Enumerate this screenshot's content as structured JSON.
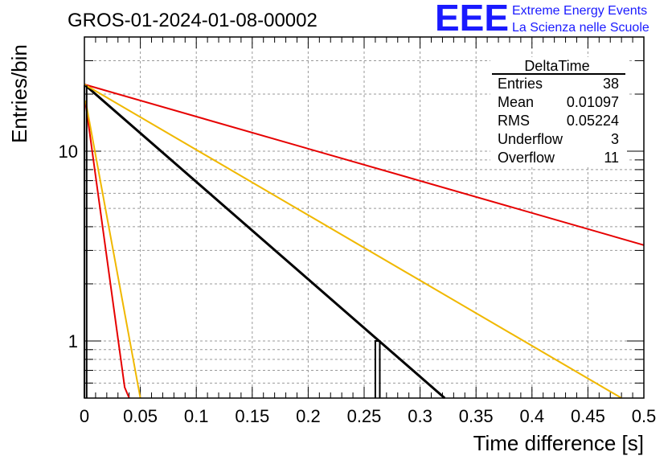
{
  "header": {
    "title": "GROS-01-2024-01-08-00002",
    "logo_text": "EEE",
    "logo_line1": "Extreme Energy Events",
    "logo_line2": "La Scienza nelle Scuole",
    "logo_color": "#1a1aff"
  },
  "stats": {
    "title": "DeltaTime",
    "rows": [
      {
        "label": "Entries",
        "value": "38"
      },
      {
        "label": "Mean",
        "value": "0.01097"
      },
      {
        "label": "RMS",
        "value": "0.05224"
      },
      {
        "label": "Underflow",
        "value": "3"
      },
      {
        "label": "Overflow",
        "value": "11"
      }
    ]
  },
  "chart_data": {
    "type": "line",
    "title": "GROS-01-2024-01-08-00002",
    "xlabel": "Time difference [s]",
    "ylabel": "Entries/bin",
    "xlim": [
      0,
      0.5
    ],
    "ylim": [
      0.5,
      40
    ],
    "yscale": "log",
    "grid": true,
    "x_ticks": [
      "0",
      "0.05",
      "0.1",
      "0.15",
      "0.2",
      "0.25",
      "0.3",
      "0.35",
      "0.4",
      "0.45",
      "0.5"
    ],
    "y_ticks": [
      "1",
      "10"
    ],
    "histogram": {
      "color": "#000000",
      "bins": [
        {
          "x0": 0.0,
          "x1": 0.002,
          "y": 22
        },
        {
          "x0": 0.26,
          "x1": 0.264,
          "y": 1
        }
      ]
    },
    "series": [
      {
        "color": "#000000",
        "x": [
          0.0,
          0.322
        ],
        "y": [
          22.5,
          0.5
        ]
      },
      {
        "color": "#e60000",
        "x": [
          0.0,
          0.5
        ],
        "y": [
          22.5,
          3.2
        ]
      },
      {
        "color": "#f0b800",
        "x": [
          0.0,
          0.48
        ],
        "y": [
          22.5,
          0.5
        ]
      },
      {
        "color": "#e60000",
        "x": [
          0.001,
          0.036,
          0.04
        ],
        "y": [
          18.0,
          0.57,
          0.5
        ]
      },
      {
        "color": "#f0b800",
        "x": [
          0.001,
          0.05
        ],
        "y": [
          18.5,
          0.5
        ]
      }
    ]
  }
}
